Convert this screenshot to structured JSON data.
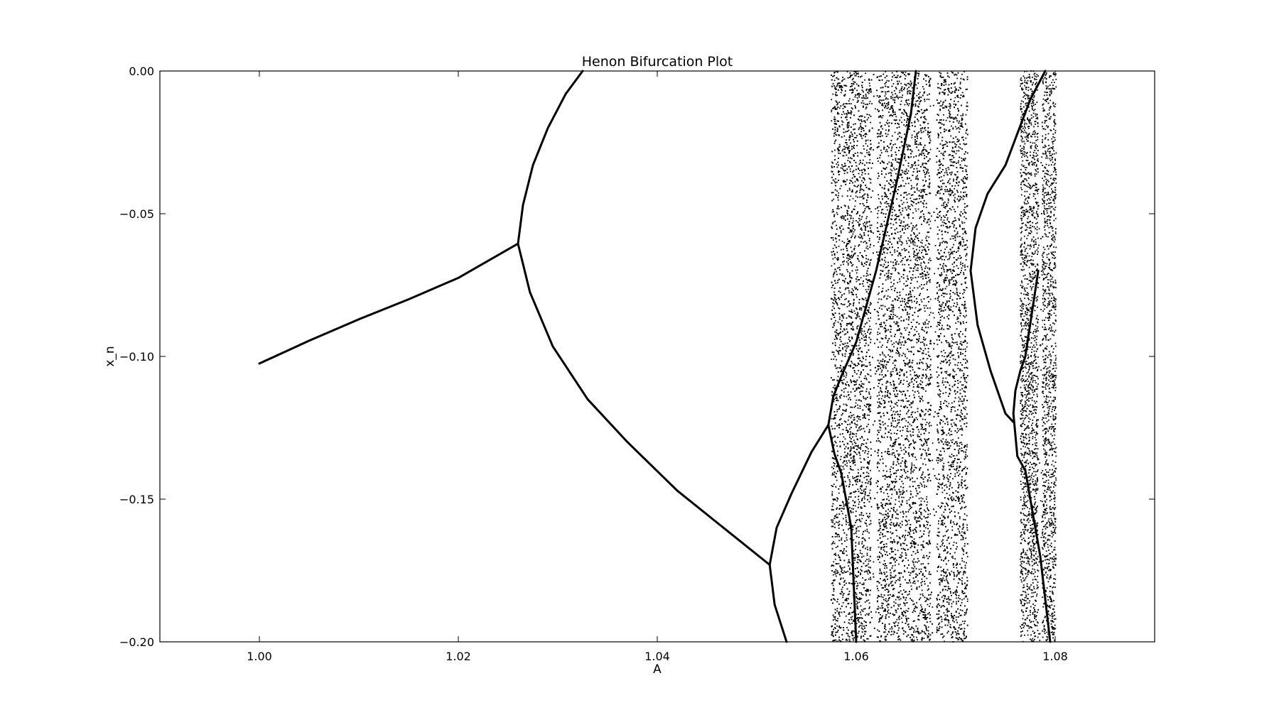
{
  "chart_data": {
    "type": "scatter",
    "title": "Henon Bifurcation Plot",
    "xlabel": "A",
    "ylabel": "x_n",
    "xlim": [
      0.99,
      1.09
    ],
    "ylim": [
      -0.2,
      0.0
    ],
    "xticks": [
      1.0,
      1.02,
      1.04,
      1.06,
      1.08
    ],
    "xtick_labels": [
      "1.00",
      "1.02",
      "1.04",
      "1.06",
      "1.08"
    ],
    "yticks": [
      0.0,
      -0.05,
      -0.1,
      -0.15,
      -0.2
    ],
    "ytick_labels": [
      "0.00",
      "−0.05",
      "−0.10",
      "−0.15",
      "−0.20"
    ],
    "grid": false,
    "legend": "none",
    "marker_color": "#000000",
    "series": [
      {
        "kind": "curve",
        "points": [
          [
            1.0,
            -0.1025
          ],
          [
            1.005,
            -0.0945
          ],
          [
            1.01,
            -0.087
          ],
          [
            1.015,
            -0.08
          ],
          [
            1.02,
            -0.0725
          ],
          [
            1.026,
            -0.0605
          ]
        ]
      },
      {
        "kind": "curve",
        "points": [
          [
            1.026,
            -0.0605
          ],
          [
            1.0265,
            -0.047
          ],
          [
            1.0275,
            -0.033
          ],
          [
            1.029,
            -0.02
          ],
          [
            1.0308,
            -0.008
          ],
          [
            1.0325,
            0.0
          ]
        ]
      },
      {
        "kind": "curve",
        "points": [
          [
            1.026,
            -0.0605
          ],
          [
            1.0272,
            -0.0775
          ],
          [
            1.0295,
            -0.0965
          ],
          [
            1.033,
            -0.115
          ],
          [
            1.037,
            -0.13
          ],
          [
            1.042,
            -0.147
          ],
          [
            1.047,
            -0.161
          ],
          [
            1.0513,
            -0.173
          ]
        ]
      },
      {
        "kind": "curve",
        "points": [
          [
            1.0513,
            -0.173
          ],
          [
            1.052,
            -0.16
          ],
          [
            1.0535,
            -0.148
          ],
          [
            1.0555,
            -0.1335
          ],
          [
            1.0572,
            -0.124
          ]
        ]
      },
      {
        "kind": "curve",
        "points": [
          [
            1.0513,
            -0.173
          ],
          [
            1.0518,
            -0.187
          ],
          [
            1.053,
            -0.2
          ]
        ]
      },
      {
        "kind": "curve",
        "points": [
          [
            1.0572,
            -0.124
          ],
          [
            1.0577,
            -0.114
          ],
          [
            1.0585,
            -0.107
          ],
          [
            1.06,
            -0.095
          ],
          [
            1.062,
            -0.07
          ],
          [
            1.064,
            -0.04
          ],
          [
            1.0655,
            -0.015
          ],
          [
            1.066,
            0.0
          ]
        ]
      },
      {
        "kind": "curve",
        "points": [
          [
            1.0572,
            -0.124
          ],
          [
            1.0578,
            -0.134
          ],
          [
            1.0585,
            -0.141
          ],
          [
            1.0595,
            -0.16
          ],
          [
            1.06,
            -0.2
          ]
        ]
      },
      {
        "kind": "curve",
        "points": [
          [
            1.0715,
            -0.07
          ],
          [
            1.072,
            -0.055
          ],
          [
            1.0732,
            -0.043
          ],
          [
            1.075,
            -0.033
          ],
          [
            1.0763,
            -0.021
          ],
          [
            1.0775,
            -0.01
          ],
          [
            1.079,
            0.0
          ]
        ]
      },
      {
        "kind": "curve",
        "points": [
          [
            1.0715,
            -0.07
          ],
          [
            1.0722,
            -0.089
          ],
          [
            1.0735,
            -0.105
          ],
          [
            1.075,
            -0.12
          ],
          [
            1.0758,
            -0.123
          ]
        ]
      },
      {
        "kind": "curve",
        "points": [
          [
            1.0758,
            -0.12
          ],
          [
            1.076,
            -0.112
          ],
          [
            1.0765,
            -0.105
          ],
          [
            1.077,
            -0.1
          ],
          [
            1.0783,
            -0.07
          ]
        ]
      },
      {
        "kind": "curve",
        "points": [
          [
            1.0758,
            -0.12
          ],
          [
            1.0762,
            -0.135
          ],
          [
            1.077,
            -0.14
          ],
          [
            1.0785,
            -0.17
          ],
          [
            1.0795,
            -0.2
          ]
        ]
      },
      {
        "kind": "chaotic_band",
        "x_range": [
          1.0575,
          1.0712
        ],
        "y_range": [
          -0.2,
          0.0
        ],
        "windows": [
          [
            1.0615,
            1.0621
          ],
          [
            1.0675,
            1.0681
          ]
        ]
      },
      {
        "kind": "chaotic_band",
        "x_range": [
          1.0765,
          1.0801
        ],
        "y_range": [
          -0.2,
          0.0
        ],
        "windows": [
          [
            1.0783,
            1.0787
          ]
        ]
      }
    ]
  }
}
